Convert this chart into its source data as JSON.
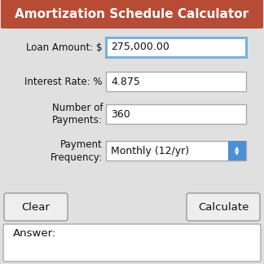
{
  "title": "Amortization Schedule Calculator",
  "title_bg": "#b84b35",
  "title_color": "#ffffff",
  "bg_color": "#e0e0e0",
  "outer_border_color": "#c0c0c0",
  "fields": [
    {
      "label1": "Loan Amount: $",
      "label2": null,
      "value": "275,000.00",
      "highlight": true,
      "dropdown": false
    },
    {
      "label1": "Interest Rate: %",
      "label2": null,
      "value": "4.875",
      "highlight": false,
      "dropdown": false
    },
    {
      "label1": "Number of",
      "label2": "Payments:",
      "value": "360",
      "highlight": false,
      "dropdown": false
    },
    {
      "label1": "Payment",
      "label2": "Frequency:",
      "value": "Monthly (12/yr)",
      "highlight": false,
      "dropdown": true
    }
  ],
  "btn_clear": "Clear",
  "btn_calc": "Calculate",
  "answer_label": "Answer:",
  "input_border_normal": "#aaaaaa",
  "input_border_highlight": "#7ab0e0",
  "input_bg": "#ffffff",
  "dropdown_btn_color": "#4d8fd4",
  "label_font_size": 8.5,
  "value_font_size": 9.0,
  "title_font_size": 11.0,
  "btn_font_size": 9.5
}
